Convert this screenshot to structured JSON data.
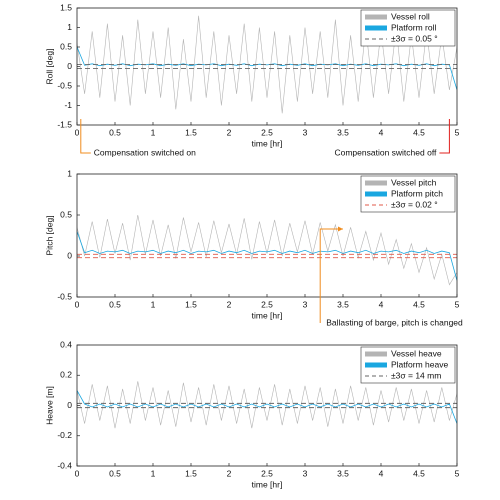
{
  "chart_data": [
    {
      "type": "line",
      "ylabel": "Roll [deg]",
      "xlabel": "time [hr]",
      "x": [
        0,
        0.1,
        0.2,
        0.3,
        0.4,
        0.5,
        0.6,
        0.7,
        0.8,
        0.9,
        1,
        1.1,
        1.2,
        1.3,
        1.4,
        1.5,
        1.6,
        1.7,
        1.8,
        1.9,
        2,
        2.1,
        2.2,
        2.3,
        2.4,
        2.5,
        2.6,
        2.7,
        2.8,
        2.9,
        3,
        3.1,
        3.2,
        3.3,
        3.4,
        3.5,
        3.6,
        3.7,
        3.8,
        3.9,
        4,
        4.1,
        4.2,
        4.3,
        4.4,
        4.5,
        4.6,
        4.7,
        4.8,
        4.9,
        5
      ],
      "series": [
        {
          "name": "Vessel roll",
          "color": "#b4b4b4",
          "values": [
            0.6,
            -0.7,
            0.9,
            -0.8,
            1.1,
            -0.9,
            0.8,
            -1.0,
            1.2,
            -0.7,
            0.9,
            -0.8,
            1.0,
            -1.1,
            0.7,
            -0.9,
            1.3,
            -0.8,
            0.9,
            -1.0,
            0.8,
            -0.7,
            1.1,
            -0.9,
            1.0,
            -0.8,
            0.9,
            -1.2,
            0.8,
            -0.9,
            1.0,
            -0.7,
            0.9,
            -0.8,
            1.2,
            -1.0,
            0.8,
            -0.9,
            1.0,
            -0.8,
            0.9,
            -0.7,
            1.0,
            -0.9,
            0.8,
            -0.8,
            0.9,
            -0.7,
            0.8,
            -0.6,
            0.5
          ]
        },
        {
          "name": "Platform  roll",
          "color": "#1aa7e0",
          "values": [
            0.5,
            0.03,
            0.07,
            0.02,
            0.06,
            0.03,
            0.07,
            0.02,
            0.06,
            0.04,
            0.07,
            0.02,
            0.06,
            0.03,
            0.07,
            0.02,
            0.06,
            0.04,
            0.07,
            0.02,
            0.06,
            0.03,
            0.07,
            0.02,
            0.06,
            0.04,
            0.07,
            0.02,
            0.06,
            0.03,
            0.07,
            0.02,
            0.06,
            0.04,
            0.07,
            0.02,
            0.06,
            0.03,
            0.07,
            0.02,
            0.06,
            0.04,
            0.07,
            0.02,
            0.06,
            0.03,
            0.07,
            0.02,
            0.06,
            0.04,
            -0.6
          ]
        },
        {
          "name": "±3σ = 0.05 °",
          "color": "#666666",
          "dash": true,
          "level": 0.05
        }
      ],
      "xlim": [
        0,
        5
      ],
      "xticks": [
        0,
        0.5,
        1,
        1.5,
        2,
        2.5,
        3,
        3.5,
        4,
        4.5,
        5
      ],
      "ylim": [
        -1.5,
        1.5
      ],
      "yticks": [
        -1.5,
        -1,
        -0.5,
        0,
        0.5,
        1,
        1.5
      ],
      "grid": false,
      "legend": "upper right",
      "annotations": [
        {
          "text": "Compensation switched on",
          "x": 0.05,
          "color": "#f08c1e",
          "align": "left"
        },
        {
          "text": "Compensation switched off",
          "x": 4.9,
          "color": "#e0201e",
          "align": "right"
        }
      ]
    },
    {
      "type": "line",
      "ylabel": "Pitch [deg]",
      "xlabel": "time [hr]",
      "x": [
        0,
        0.1,
        0.2,
        0.3,
        0.4,
        0.5,
        0.6,
        0.7,
        0.8,
        0.9,
        1,
        1.1,
        1.2,
        1.3,
        1.4,
        1.5,
        1.6,
        1.7,
        1.8,
        1.9,
        2,
        2.1,
        2.2,
        2.3,
        2.4,
        2.5,
        2.6,
        2.7,
        2.8,
        2.9,
        3,
        3.1,
        3.2,
        3.3,
        3.4,
        3.5,
        3.6,
        3.7,
        3.8,
        3.9,
        4,
        4.1,
        4.2,
        4.3,
        4.4,
        4.5,
        4.6,
        4.7,
        4.8,
        4.9,
        5
      ],
      "series": [
        {
          "name": "Vessel pitch",
          "color": "#b4b4b4",
          "values": [
            0.35,
            0.0,
            0.42,
            -0.02,
            0.45,
            0.03,
            0.4,
            -0.05,
            0.5,
            0.02,
            0.44,
            0.0,
            0.38,
            -0.03,
            0.47,
            0.05,
            0.41,
            -0.01,
            0.43,
            0.04,
            0.39,
            0.02,
            0.46,
            -0.04,
            0.42,
            0.03,
            0.44,
            0.0,
            0.4,
            0.05,
            0.43,
            0.02,
            0.41,
            0.06,
            0.38,
            0.0,
            0.35,
            -0.02,
            0.3,
            -0.05,
            0.28,
            -0.1,
            0.2,
            -0.15,
            0.15,
            -0.2,
            0.1,
            -0.28,
            0.02,
            -0.35,
            -0.2
          ]
        },
        {
          "name": "Platform  pitch",
          "color": "#1aa7e0",
          "values": [
            0.3,
            0.04,
            0.07,
            0.03,
            0.06,
            0.05,
            0.07,
            0.03,
            0.06,
            0.05,
            0.07,
            0.03,
            0.06,
            0.04,
            0.07,
            0.03,
            0.06,
            0.05,
            0.07,
            0.03,
            0.06,
            0.04,
            0.07,
            0.03,
            0.06,
            0.05,
            0.07,
            0.03,
            0.06,
            0.04,
            0.07,
            0.03,
            0.06,
            0.05,
            0.07,
            0.03,
            0.06,
            0.04,
            0.07,
            0.03,
            0.06,
            0.05,
            0.07,
            0.03,
            0.06,
            0.04,
            0.07,
            0.03,
            0.06,
            0.04,
            -0.3
          ]
        },
        {
          "name": "±3σ = 0.02 °",
          "color": "#e05a4a",
          "dash": true,
          "level": 0.02
        }
      ],
      "xlim": [
        0,
        5
      ],
      "xticks": [
        0,
        0.5,
        1,
        1.5,
        2,
        2.5,
        3,
        3.5,
        4,
        4.5,
        5
      ],
      "ylim": [
        -0.5,
        1
      ],
      "yticks": [
        -0.5,
        0,
        0.5,
        1
      ],
      "grid": false,
      "legend": "upper right",
      "annotations": [
        {
          "text": "Ballasting of barge, pitch is changed",
          "x": 3.2,
          "y": 0.33,
          "x_end": 3.5,
          "color": "#f08c1e",
          "align": "left"
        }
      ]
    },
    {
      "type": "line",
      "ylabel": "Heave [m]",
      "xlabel": "time [hr]",
      "x": [
        0,
        0.1,
        0.2,
        0.3,
        0.4,
        0.5,
        0.6,
        0.7,
        0.8,
        0.9,
        1,
        1.1,
        1.2,
        1.3,
        1.4,
        1.5,
        1.6,
        1.7,
        1.8,
        1.9,
        2,
        2.1,
        2.2,
        2.3,
        2.4,
        2.5,
        2.6,
        2.7,
        2.8,
        2.9,
        3,
        3.1,
        3.2,
        3.3,
        3.4,
        3.5,
        3.6,
        3.7,
        3.8,
        3.9,
        4,
        4.1,
        4.2,
        4.3,
        4.4,
        4.5,
        4.6,
        4.7,
        4.8,
        4.9,
        5
      ],
      "series": [
        {
          "name": "Vessel heave",
          "color": "#b4b4b4",
          "values": [
            0.1,
            -0.12,
            0.14,
            -0.1,
            0.13,
            -0.15,
            0.11,
            -0.12,
            0.16,
            -0.1,
            0.12,
            -0.13,
            0.1,
            -0.14,
            0.15,
            -0.11,
            0.12,
            -0.13,
            0.14,
            -0.1,
            0.13,
            -0.12,
            0.11,
            -0.15,
            0.12,
            -0.1,
            0.14,
            -0.13,
            0.11,
            -0.12,
            0.13,
            -0.1,
            0.12,
            -0.14,
            0.11,
            -0.12,
            0.13,
            -0.1,
            0.12,
            -0.13,
            0.1,
            -0.11,
            0.12,
            -0.1,
            0.11,
            -0.12,
            0.1,
            -0.11,
            0.12,
            -0.1,
            0.08
          ]
        },
        {
          "name": "Platform  heave",
          "color": "#1aa7e0",
          "values": [
            0.1,
            0.01,
            -0.01,
            0.01,
            -0.01,
            0.01,
            -0.01,
            0.01,
            -0.01,
            0.01,
            -0.01,
            0.01,
            -0.01,
            0.01,
            -0.01,
            0.01,
            -0.01,
            0.01,
            -0.01,
            0.01,
            -0.01,
            0.01,
            -0.01,
            0.01,
            -0.01,
            0.01,
            -0.01,
            0.01,
            -0.01,
            0.01,
            -0.01,
            0.01,
            -0.01,
            0.01,
            -0.01,
            0.01,
            -0.01,
            0.01,
            -0.01,
            0.01,
            -0.01,
            0.01,
            -0.01,
            0.01,
            -0.01,
            0.01,
            -0.01,
            0.01,
            -0.01,
            0.01,
            -0.12
          ]
        },
        {
          "name": "±3σ = 14 mm",
          "color": "#666666",
          "dash": true,
          "level": 0.014
        }
      ],
      "xlim": [
        0,
        5
      ],
      "xticks": [
        0,
        0.5,
        1,
        1.5,
        2,
        2.5,
        3,
        3.5,
        4,
        4.5,
        5
      ],
      "ylim": [
        -0.4,
        0.4
      ],
      "yticks": [
        -0.4,
        -0.2,
        0,
        0.2,
        0.4
      ],
      "grid": false,
      "legend": "upper right"
    }
  ]
}
